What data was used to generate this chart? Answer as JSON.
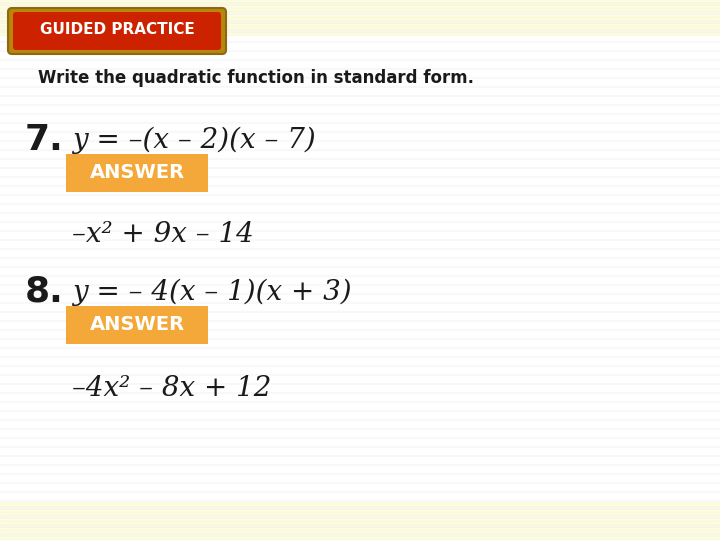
{
  "fig_width": 7.2,
  "fig_height": 5.4,
  "dpi": 100,
  "background_color": "#FFFFF0",
  "main_area_color": "#FFFFFF",
  "header_text": "GUIDED PRACTICE",
  "header_bg": "#CC2200",
  "header_border_outer": "#B8860B",
  "header_border_inner": "#8B1A00",
  "subtitle": "Write the quadratic function in standard form.",
  "problem7_number": "7.",
  "problem7_eq": "y = –(x – 2)(x – 7)",
  "answer_label": "ANSWER",
  "answer_bg": "#F4A83A",
  "answer7": "–x² + 9x – 14",
  "problem8_number": "8.",
  "problem8_eq": "y = – 4(x – 1)(x + 3)",
  "answer8": "–4x² – 8x + 12",
  "stripe_color_light": "#FAFAD2",
  "stripe_color_dark": "#F5F5DC",
  "border_stripe_color": "#F0F0A0",
  "text_color": "#1a1a1a"
}
